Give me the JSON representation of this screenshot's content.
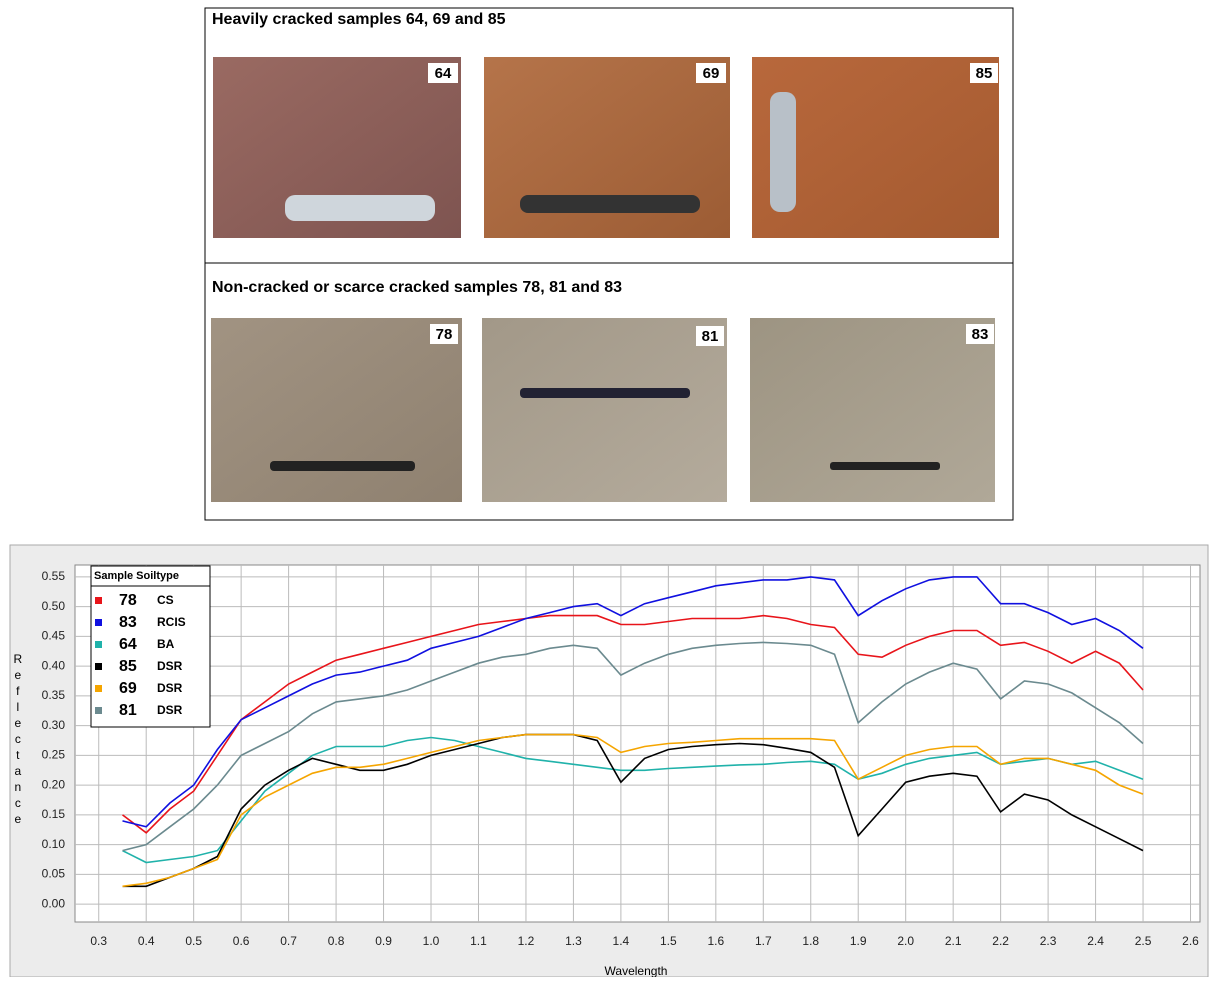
{
  "figure": {
    "groups": [
      {
        "title": "Heavily cracked samples 64, 69 and 85",
        "samples": [
          "64",
          "69",
          "85"
        ]
      },
      {
        "title": "Non-cracked or scarce cracked samples 78, 81 and 83",
        "samples": [
          "78",
          "81",
          "83"
        ]
      }
    ]
  },
  "chart_data": {
    "type": "line",
    "xlabel": "Wavelength",
    "ylabel": "Reflectance",
    "legend_title": "Sample Soiltype",
    "xlim": [
      0.25,
      2.62
    ],
    "ylim": [
      -0.03,
      0.57
    ],
    "grid": true,
    "xticks": [
      0.3,
      0.4,
      0.5,
      0.6,
      0.7,
      0.8,
      0.9,
      {
        "value": 1.0,
        "label": "1.0"
      },
      1.1,
      1.2,
      1.3,
      1.4,
      1.5,
      1.6,
      1.7,
      1.8,
      1.9,
      {
        "value": 2.0,
        "label": "2.0"
      },
      2.1,
      2.2,
      2.3,
      2.4,
      2.5,
      2.6
    ],
    "yticks": [
      {
        "value": 0,
        "label": "0.00"
      },
      {
        "value": 0.05,
        "label": "0.05"
      },
      {
        "value": 0.1,
        "label": "0.10"
      },
      {
        "value": 0.15,
        "label": "0.15"
      },
      {
        "value": 0.2,
        "label": "0.20"
      },
      {
        "value": 0.25,
        "label": "0.25"
      },
      {
        "value": 0.3,
        "label": "0.30"
      },
      {
        "value": 0.35,
        "label": "0.35"
      },
      {
        "value": 0.4,
        "label": "0.40"
      },
      {
        "value": 0.45,
        "label": "0.45"
      },
      {
        "value": 0.5,
        "label": "0.50"
      },
      {
        "value": 0.55,
        "label": "0.55"
      }
    ],
    "x": [
      0.35,
      0.4,
      0.45,
      0.5,
      0.55,
      0.6,
      0.65,
      0.7,
      0.75,
      0.8,
      0.85,
      0.9,
      0.95,
      1.0,
      1.05,
      1.1,
      1.15,
      1.2,
      1.25,
      1.3,
      1.35,
      1.4,
      1.45,
      1.5,
      1.55,
      1.6,
      1.65,
      1.7,
      1.75,
      1.8,
      1.85,
      1.9,
      1.95,
      2.0,
      2.05,
      2.1,
      2.15,
      2.2,
      2.25,
      2.3,
      2.35,
      2.4,
      2.45,
      2.5
    ],
    "series": [
      {
        "name": "78",
        "soiltype": "CS",
        "color": "#e8141a",
        "values": [
          0.15,
          0.12,
          0.16,
          0.19,
          0.25,
          0.31,
          0.34,
          0.37,
          0.39,
          0.41,
          0.42,
          0.43,
          0.44,
          0.45,
          0.46,
          0.47,
          0.475,
          0.48,
          0.485,
          0.485,
          0.485,
          0.47,
          0.47,
          0.475,
          0.48,
          0.48,
          0.48,
          0.485,
          0.48,
          0.47,
          0.465,
          0.42,
          0.415,
          0.435,
          0.45,
          0.46,
          0.46,
          0.435,
          0.44,
          0.425,
          0.405,
          0.425,
          0.405,
          0.36
        ]
      },
      {
        "name": "83",
        "soiltype": "RCIS",
        "color": "#1010e0",
        "values": [
          0.14,
          0.13,
          0.17,
          0.2,
          0.26,
          0.31,
          0.33,
          0.35,
          0.37,
          0.385,
          0.39,
          0.4,
          0.41,
          0.43,
          0.44,
          0.45,
          0.465,
          0.48,
          0.49,
          0.5,
          0.505,
          0.485,
          0.505,
          0.515,
          0.525,
          0.535,
          0.54,
          0.545,
          0.545,
          0.55,
          0.545,
          0.485,
          0.51,
          0.53,
          0.545,
          0.55,
          0.55,
          0.505,
          0.505,
          0.49,
          0.47,
          0.48,
          0.46,
          0.43
        ]
      },
      {
        "name": "64",
        "soiltype": "BA",
        "color": "#20b2aa",
        "values": [
          0.09,
          0.07,
          0.075,
          0.08,
          0.09,
          0.14,
          0.19,
          0.22,
          0.25,
          0.265,
          0.265,
          0.265,
          0.275,
          0.28,
          0.275,
          0.265,
          0.255,
          0.245,
          0.24,
          0.235,
          0.23,
          0.225,
          0.225,
          0.228,
          0.23,
          0.232,
          0.234,
          0.235,
          0.238,
          0.24,
          0.235,
          0.21,
          0.22,
          0.235,
          0.245,
          0.25,
          0.255,
          0.235,
          0.24,
          0.245,
          0.235,
          0.24,
          0.225,
          0.21
        ]
      },
      {
        "name": "85",
        "soiltype": "DSR",
        "color": "#000000",
        "values": [
          0.03,
          0.03,
          0.045,
          0.06,
          0.08,
          0.16,
          0.2,
          0.225,
          0.245,
          0.235,
          0.225,
          0.225,
          0.235,
          0.25,
          0.26,
          0.27,
          0.28,
          0.285,
          0.285,
          0.285,
          0.275,
          0.205,
          0.245,
          0.26,
          0.265,
          0.268,
          0.27,
          0.268,
          0.262,
          0.255,
          0.23,
          0.115,
          0.16,
          0.205,
          0.215,
          0.22,
          0.215,
          0.155,
          0.185,
          0.175,
          0.15,
          0.13,
          0.11,
          0.09
        ]
      },
      {
        "name": "69",
        "soiltype": "DSR",
        "color": "#f5a500",
        "values": [
          0.03,
          0.035,
          0.045,
          0.06,
          0.075,
          0.15,
          0.18,
          0.2,
          0.22,
          0.23,
          0.23,
          0.235,
          0.245,
          0.255,
          0.265,
          0.275,
          0.28,
          0.285,
          0.285,
          0.285,
          0.28,
          0.255,
          0.265,
          0.27,
          0.272,
          0.275,
          0.278,
          0.278,
          0.278,
          0.278,
          0.275,
          0.21,
          0.23,
          0.25,
          0.26,
          0.265,
          0.265,
          0.235,
          0.245,
          0.245,
          0.235,
          0.225,
          0.2,
          0.185
        ]
      },
      {
        "name": "81",
        "soiltype": "DSR",
        "color": "#6b8a8f",
        "values": [
          0.09,
          0.1,
          0.13,
          0.16,
          0.2,
          0.25,
          0.27,
          0.29,
          0.32,
          0.34,
          0.345,
          0.35,
          0.36,
          0.375,
          0.39,
          0.405,
          0.415,
          0.42,
          0.43,
          0.435,
          0.43,
          0.385,
          0.405,
          0.42,
          0.43,
          0.435,
          0.438,
          0.44,
          0.438,
          0.435,
          0.42,
          0.305,
          0.34,
          0.37,
          0.39,
          0.405,
          0.395,
          0.345,
          0.375,
          0.37,
          0.355,
          0.33,
          0.305,
          0.27
        ]
      }
    ]
  }
}
